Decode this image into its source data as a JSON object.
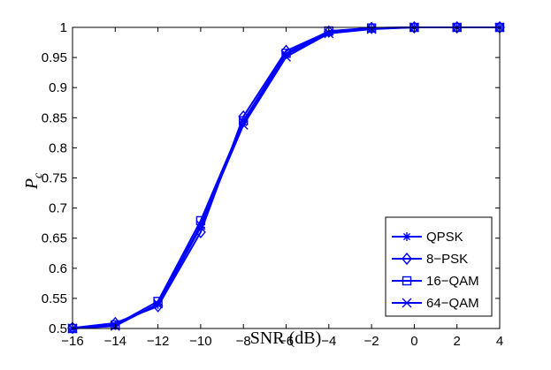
{
  "chart_data": {
    "type": "line",
    "title": "",
    "xlabel": "SNR (dB)",
    "ylabel_main": "P",
    "ylabel_sub": "c",
    "xlim": [
      -16,
      4
    ],
    "ylim": [
      0.5,
      1
    ],
    "x_ticks": [
      -16,
      -14,
      -12,
      -10,
      -8,
      -6,
      -4,
      -2,
      0,
      2,
      4
    ],
    "y_ticks": [
      "0.5",
      "0.55",
      "0.6",
      "0.65",
      "0.7",
      "0.75",
      "0.8",
      "0.85",
      "0.9",
      "0.95",
      "1"
    ],
    "grid": false,
    "legend_position": "bottom-right",
    "line_color": "#0000ff",
    "x": [
      -16,
      -14,
      -12,
      -10,
      -8,
      -6,
      -4,
      -2,
      0,
      2,
      4
    ],
    "series": [
      {
        "name": "QPSK",
        "marker": "asterisk",
        "values": [
          0.5,
          0.505,
          0.54,
          0.668,
          0.842,
          0.955,
          0.991,
          0.998,
          1.0,
          1.0,
          1.0
        ]
      },
      {
        "name": "8−PSK",
        "marker": "diamond",
        "values": [
          0.501,
          0.509,
          0.537,
          0.66,
          0.852,
          0.961,
          0.993,
          0.999,
          1.0,
          1.0,
          1.0
        ]
      },
      {
        "name": "16−QAM",
        "marker": "square",
        "values": [
          0.5,
          0.506,
          0.545,
          0.679,
          0.845,
          0.957,
          0.994,
          0.999,
          1.0,
          1.0,
          1.0
        ]
      },
      {
        "name": "64−QAM",
        "marker": "x",
        "values": [
          0.5,
          0.504,
          0.541,
          0.672,
          0.838,
          0.951,
          0.99,
          0.997,
          1.0,
          1.0,
          1.0
        ]
      }
    ]
  }
}
